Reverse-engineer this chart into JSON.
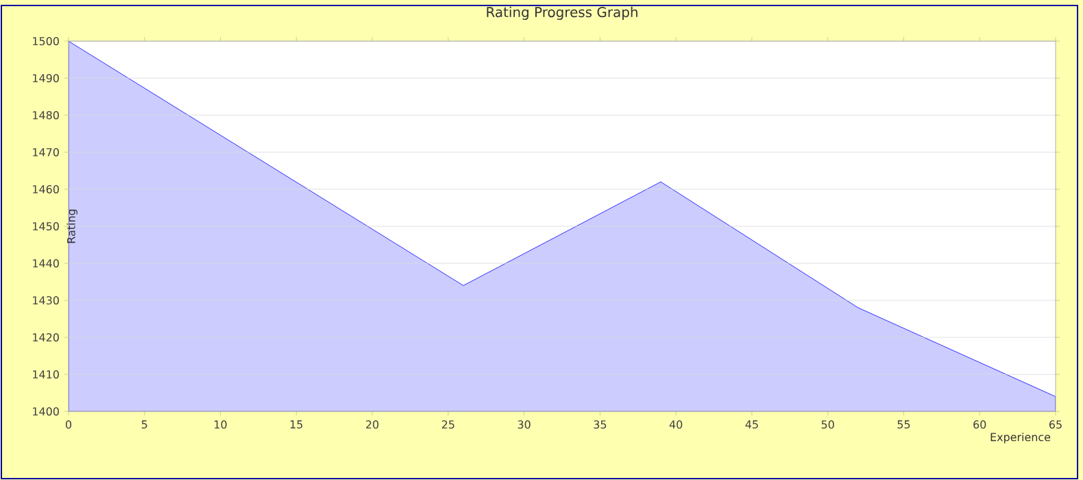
{
  "chart_data": {
    "type": "area",
    "title": "Rating Progress Graph",
    "xlabel": "Experience",
    "ylabel": "Rating",
    "x": [
      0,
      26,
      39,
      52,
      65
    ],
    "series": [
      {
        "color": "#ccccff",
        "values": [
          1500,
          1434,
          1462,
          1428,
          1404
        ]
      }
    ],
    "xlim": [
      0,
      65
    ],
    "ylim": [
      1400,
      1500
    ],
    "xticks": [
      0,
      5,
      10,
      15,
      20,
      25,
      30,
      35,
      40,
      45,
      50,
      55,
      60,
      65
    ],
    "yticks": [
      1400,
      1410,
      1420,
      1430,
      1440,
      1450,
      1460,
      1470,
      1480,
      1490,
      1500
    ],
    "grid": "y"
  }
}
